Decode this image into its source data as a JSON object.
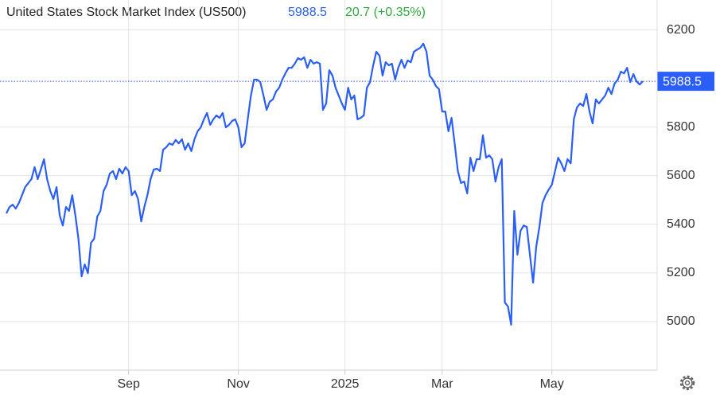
{
  "chart_data": {
    "type": "line",
    "title": "United States Stock Market Index (US500)",
    "price_label": "5988.5",
    "change_label": "20.7 (+0.35%)",
    "color": "#2a5ef5",
    "change_color": "#2eaa3c",
    "values": [
      5445,
      5471,
      5481,
      5465,
      5488,
      5520,
      5553,
      5570,
      5586,
      5635,
      5586,
      5625,
      5668,
      5586,
      5537,
      5504,
      5553,
      5438,
      5395,
      5471,
      5455,
      5520,
      5438,
      5340,
      5186,
      5235,
      5199,
      5324,
      5340,
      5432,
      5455,
      5537,
      5563,
      5609,
      5619,
      5586,
      5629,
      5609,
      5635,
      5619,
      5520,
      5537,
      5504,
      5412,
      5471,
      5520,
      5586,
      5625,
      5629,
      5619,
      5707,
      5717,
      5733,
      5727,
      5747,
      5733,
      5750,
      5707,
      5733,
      5701,
      5750,
      5783,
      5799,
      5832,
      5858,
      5809,
      5832,
      5848,
      5838,
      5858,
      5799,
      5809,
      5825,
      5832,
      5799,
      5717,
      5733,
      5832,
      5930,
      5995,
      5995,
      5985,
      5930,
      5871,
      5904,
      5914,
      5946,
      5962,
      5995,
      6021,
      6044,
      6044,
      6061,
      6084,
      6077,
      6087,
      6044,
      6077,
      6061,
      6067,
      6061,
      5871,
      5897,
      6034,
      6012,
      5962,
      5930,
      5897,
      5871,
      5962,
      5914,
      5930,
      5832,
      5838,
      5848,
      5962,
      5985,
      6054,
      6110,
      6094,
      6012,
      6067,
      6054,
      6061,
      5995,
      6044,
      6077,
      6044,
      6074,
      6067,
      6110,
      6119,
      6126,
      6143,
      6110,
      6012,
      5995,
      5969,
      5956,
      5864,
      5864,
      5783,
      5838,
      5733,
      5619,
      5570,
      5576,
      5527,
      5674,
      5619,
      5668,
      5668,
      5766,
      5674,
      5684,
      5668,
      5576,
      5635,
      5668,
      5078,
      5062,
      4987,
      5455,
      5275,
      5373,
      5395,
      5389,
      5275,
      5160,
      5307,
      5389,
      5488,
      5520,
      5543,
      5563,
      5619,
      5674,
      5651,
      5619,
      5668,
      5651,
      5832,
      5881,
      5897,
      5887,
      5936,
      5864,
      5815,
      5914,
      5897,
      5914,
      5930,
      5962,
      5936,
      5979,
      5995,
      6028,
      6021,
      6044,
      5985,
      6018,
      5988,
      5975,
      5988.5
    ],
    "ylim": [
      4800,
      6300
    ],
    "yticks": [
      5000,
      5200,
      5400,
      5600,
      5800,
      6200
    ],
    "xticks": [
      {
        "value": 39,
        "label": "Sep"
      },
      {
        "value": 74,
        "label": "Nov"
      },
      {
        "value": 108,
        "label": "2025"
      },
      {
        "value": 139,
        "label": "Mar"
      },
      {
        "value": 174,
        "label": "May"
      }
    ],
    "grid": true
  }
}
